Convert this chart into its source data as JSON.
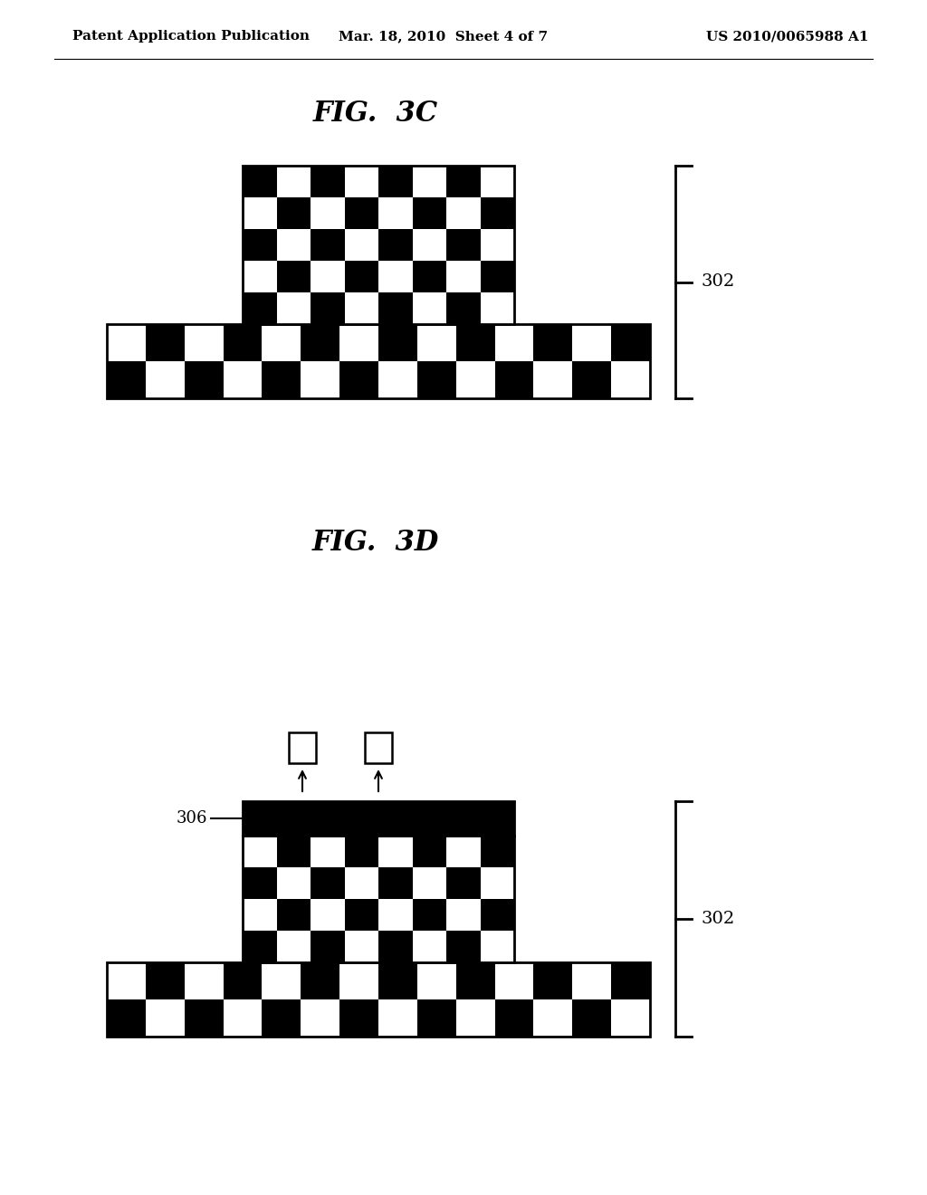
{
  "header_left": "Patent Application Publication",
  "header_mid": "Mar. 18, 2010  Sheet 4 of 7",
  "header_right": "US 2010/0065988 A1",
  "fig3c_label": "FIG.  3C",
  "fig3d_label": "FIG.  3D",
  "label_302": "302",
  "label_306": "306",
  "bg_color": "#ffffff"
}
